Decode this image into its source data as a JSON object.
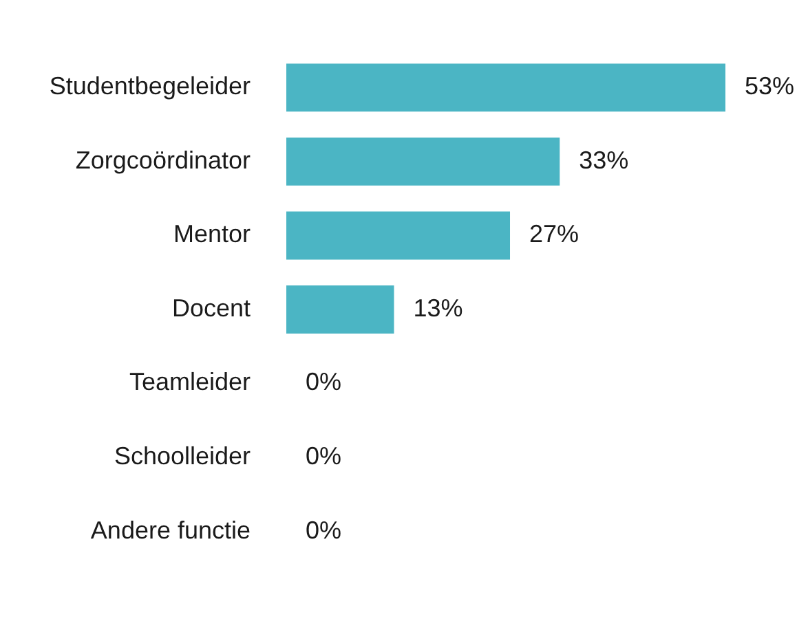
{
  "chart_data": {
    "type": "bar",
    "orientation": "horizontal",
    "categories": [
      "Studentbegeleider",
      "Zorgcoördinator",
      "Mentor",
      "Docent",
      "Teamleider",
      "Schoolleider",
      "Andere functie"
    ],
    "values": [
      53,
      33,
      27,
      13,
      0,
      0,
      0
    ],
    "value_labels": [
      "53%",
      "33%",
      "27%",
      "13%",
      "0%",
      "0%",
      "0%"
    ],
    "color": "#4bb5c4",
    "legend": false
  }
}
